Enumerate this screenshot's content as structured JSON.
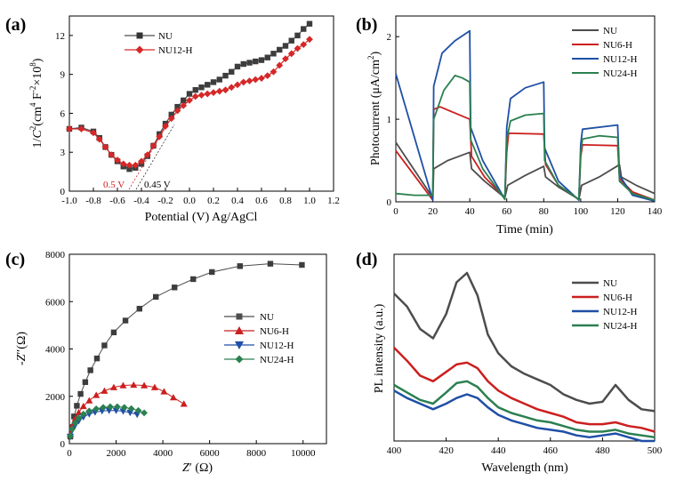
{
  "colors": {
    "NU": "#4d4d4d",
    "NU6": "#cc1f1f",
    "NU12": "#1f4fa6",
    "NU24": "#2b8050",
    "NU12H_a": "#d62728"
  },
  "chart_data": [
    {
      "panel": "(a)",
      "type": "scatter",
      "xlabel": "Potential (V) Ag/AgCl",
      "ylabel_parts": [
        "1/",
        "C",
        "2",
        "(cm",
        "4",
        " F",
        "-2",
        "×10",
        "8",
        ")"
      ],
      "xlim": [
        -1.0,
        1.2
      ],
      "ylim": [
        0,
        13.5
      ],
      "xticks": [
        "-1.0",
        "-0.8",
        "-0.6",
        "-0.4",
        "-0.2",
        "0.0",
        "0.2",
        "0.4",
        "0.6",
        "0.8",
        "1.0",
        "1.2"
      ],
      "yticks": [
        "0",
        "3",
        "6",
        "9",
        "12"
      ],
      "legend": [
        "NU",
        "NU12-H"
      ],
      "annotations": [
        "0.5 V",
        "0.45 V"
      ],
      "series": [
        {
          "name": "NU",
          "marker": "square",
          "color_key": "NU",
          "x": [
            -1.0,
            -0.9,
            -0.8,
            -0.75,
            -0.7,
            -0.65,
            -0.6,
            -0.55,
            -0.5,
            -0.45,
            -0.4,
            -0.35,
            -0.3,
            -0.25,
            -0.2,
            -0.15,
            -0.1,
            -0.05,
            0.0,
            0.05,
            0.1,
            0.15,
            0.2,
            0.25,
            0.3,
            0.35,
            0.4,
            0.45,
            0.5,
            0.55,
            0.6,
            0.65,
            0.7,
            0.75,
            0.8,
            0.85,
            0.9,
            0.95,
            1.0
          ],
          "y": [
            4.8,
            4.9,
            4.6,
            4.1,
            3.4,
            2.8,
            2.3,
            1.9,
            1.7,
            1.8,
            2.1,
            2.7,
            3.5,
            4.4,
            5.2,
            5.9,
            6.5,
            7.0,
            7.5,
            7.8,
            8.0,
            8.2,
            8.4,
            8.6,
            8.9,
            9.2,
            9.6,
            9.8,
            9.9,
            10.0,
            10.1,
            10.3,
            10.6,
            10.9,
            11.2,
            11.6,
            12.0,
            12.5,
            12.9
          ]
        },
        {
          "name": "NU12-H",
          "marker": "diamond",
          "color_key": "NU12H_a",
          "x": [
            -1.0,
            -0.9,
            -0.8,
            -0.75,
            -0.7,
            -0.65,
            -0.6,
            -0.55,
            -0.5,
            -0.45,
            -0.4,
            -0.35,
            -0.3,
            -0.25,
            -0.2,
            -0.15,
            -0.1,
            -0.05,
            0.0,
            0.05,
            0.1,
            0.15,
            0.2,
            0.25,
            0.3,
            0.35,
            0.4,
            0.45,
            0.5,
            0.55,
            0.6,
            0.65,
            0.7,
            0.75,
            0.8,
            0.85,
            0.9,
            0.95,
            1.0
          ],
          "y": [
            4.8,
            4.8,
            4.5,
            4.0,
            3.4,
            2.8,
            2.4,
            2.1,
            2.0,
            2.0,
            2.3,
            2.8,
            3.5,
            4.2,
            5.0,
            5.6,
            6.2,
            6.6,
            7.0,
            7.3,
            7.4,
            7.5,
            7.6,
            7.7,
            7.8,
            8.0,
            8.2,
            8.4,
            8.5,
            8.6,
            8.7,
            8.9,
            9.2,
            9.7,
            10.2,
            10.6,
            11.0,
            11.3,
            11.7
          ]
        }
      ]
    },
    {
      "panel": "(b)",
      "type": "line",
      "xlabel": "Time (min)",
      "ylabel": "Photocurrent (μA/cm²)",
      "ylabel_parts": [
        "Photocurrent (μA/cm",
        "2",
        ")"
      ],
      "xlim": [
        0,
        140
      ],
      "ylim": [
        0,
        2.25
      ],
      "xticks": [
        "0",
        "20",
        "40",
        "60",
        "80",
        "100",
        "120",
        "140"
      ],
      "yticks": [
        "0",
        "1",
        "2"
      ],
      "legend": [
        "NU",
        "NU6-H",
        "NU12-H",
        "NU24-H"
      ],
      "series": [
        {
          "name": "NU",
          "color_key": "NU",
          "x": [
            0,
            20,
            20.5,
            28,
            40,
            41,
            48,
            59,
            60.5,
            70,
            80,
            81,
            88,
            99,
            100.5,
            110,
            121,
            122,
            130,
            140
          ],
          "y": [
            0.72,
            0.05,
            0.4,
            0.5,
            0.6,
            0.4,
            0.25,
            0.05,
            0.2,
            0.32,
            0.43,
            0.3,
            0.18,
            0.03,
            0.2,
            0.3,
            0.45,
            0.3,
            0.2,
            0.1
          ]
        },
        {
          "name": "NU6-H",
          "color_key": "NU6",
          "x": [
            0,
            20,
            20.5,
            24,
            40,
            41,
            48,
            59,
            60,
            61,
            80,
            81,
            88,
            99,
            100,
            101,
            120,
            121,
            128,
            140
          ],
          "y": [
            0.62,
            0.02,
            1.12,
            1.15,
            1.0,
            0.55,
            0.3,
            0.05,
            0.6,
            0.83,
            0.82,
            0.45,
            0.2,
            0.03,
            0.55,
            0.69,
            0.68,
            0.28,
            0.12,
            0.02
          ]
        },
        {
          "name": "NU12-H",
          "color_key": "NU12",
          "x": [
            0,
            20,
            20.5,
            25,
            32,
            40,
            40.5,
            47,
            59,
            60,
            62,
            70,
            80,
            80.5,
            88,
            99,
            100,
            101,
            120,
            121,
            128,
            140
          ],
          "y": [
            1.55,
            0.02,
            1.4,
            1.8,
            1.95,
            2.07,
            0.9,
            0.5,
            0.03,
            0.9,
            1.25,
            1.38,
            1.45,
            0.65,
            0.25,
            0.02,
            0.7,
            0.88,
            0.93,
            0.32,
            0.08,
            0.01
          ]
        },
        {
          "name": "NU24-H",
          "color_key": "NU24",
          "x": [
            0,
            10,
            20,
            20.5,
            26,
            32,
            36,
            40,
            40.5,
            47,
            59,
            60,
            62,
            70,
            80,
            80.5,
            88,
            99,
            100,
            101,
            110,
            120,
            121,
            128,
            140
          ],
          "y": [
            0.1,
            0.08,
            0.08,
            1.0,
            1.35,
            1.53,
            1.5,
            1.45,
            0.75,
            0.4,
            0.03,
            0.75,
            0.98,
            1.05,
            1.07,
            0.5,
            0.2,
            0.03,
            0.6,
            0.76,
            0.8,
            0.78,
            0.25,
            0.1,
            0.02
          ]
        }
      ]
    },
    {
      "panel": "(c)",
      "type": "scatter",
      "xlabel_parts": [
        "Z",
        "′ (Ω)"
      ],
      "ylabel_parts": [
        "-Z",
        "″",
        "(Ω)"
      ],
      "xlim": [
        0,
        11000
      ],
      "ylim": [
        0,
        8000
      ],
      "xticks": [
        "0",
        "2000",
        "4000",
        "6000",
        "8000",
        "10000"
      ],
      "yticks": [
        "0",
        "2000",
        "4000",
        "6000",
        "8000"
      ],
      "legend": [
        "NU",
        "NU6-H",
        "NU12-H",
        "NU24-H"
      ],
      "series": [
        {
          "name": "NU",
          "marker": "square",
          "color_key": "NU",
          "x": [
            40,
            100,
            200,
            320,
            480,
            680,
            900,
            1180,
            1500,
            1900,
            2400,
            3000,
            3700,
            4500,
            5300,
            6100,
            7300,
            8600,
            9950
          ],
          "y": [
            300,
            700,
            1150,
            1600,
            2100,
            2600,
            3100,
            3600,
            4150,
            4700,
            5200,
            5700,
            6200,
            6600,
            6950,
            7250,
            7500,
            7600,
            7550
          ]
        },
        {
          "name": "NU6-H",
          "marker": "triangle-up",
          "color_key": "NU6",
          "x": [
            40,
            120,
            250,
            400,
            600,
            850,
            1150,
            1500,
            1900,
            2300,
            2750,
            3200,
            3650,
            4050,
            4450,
            4900
          ],
          "y": [
            400,
            750,
            1050,
            1320,
            1580,
            1820,
            2050,
            2230,
            2380,
            2460,
            2480,
            2460,
            2380,
            2200,
            1950,
            1680
          ]
        },
        {
          "name": "NU12-H",
          "marker": "triangle-down",
          "color_key": "NU12",
          "x": [
            40,
            120,
            250,
            400,
            600,
            850,
            1100,
            1400,
            1700,
            2000,
            2300,
            2600,
            2900
          ],
          "y": [
            300,
            560,
            780,
            960,
            1120,
            1250,
            1330,
            1380,
            1400,
            1400,
            1370,
            1310,
            1230
          ]
        },
        {
          "name": "NU24-H",
          "marker": "diamond",
          "color_key": "NU24",
          "x": [
            40,
            120,
            250,
            400,
            600,
            850,
            1150,
            1450,
            1750,
            2050,
            2350,
            2650,
            2950,
            3200
          ],
          "y": [
            320,
            620,
            880,
            1080,
            1250,
            1380,
            1470,
            1530,
            1560,
            1560,
            1530,
            1480,
            1400,
            1300
          ]
        }
      ]
    },
    {
      "panel": "(d)",
      "type": "line",
      "xlabel": "Wavelength (nm)",
      "ylabel": "PL intensity (a.u.)",
      "xlim": [
        400,
        500
      ],
      "ylim": [
        0,
        1
      ],
      "xticks": [
        "400",
        "420",
        "440",
        "460",
        "480",
        "500"
      ],
      "legend": [
        "NU",
        "NU6-H",
        "NU12-H",
        "NU24-H"
      ],
      "series": [
        {
          "name": "NU",
          "color_key": "NU",
          "x": [
            400,
            405,
            410,
            415,
            420,
            424,
            428,
            432,
            436,
            440,
            445,
            450,
            455,
            460,
            465,
            470,
            475,
            480,
            485,
            490,
            495,
            500
          ],
          "y": [
            0.79,
            0.72,
            0.6,
            0.55,
            0.68,
            0.85,
            0.9,
            0.78,
            0.57,
            0.47,
            0.4,
            0.36,
            0.33,
            0.3,
            0.25,
            0.22,
            0.2,
            0.21,
            0.3,
            0.22,
            0.17,
            0.16
          ]
        },
        {
          "name": "NU6-H",
          "color_key": "NU6",
          "x": [
            400,
            405,
            410,
            415,
            420,
            424,
            428,
            432,
            436,
            440,
            445,
            450,
            455,
            460,
            465,
            470,
            475,
            480,
            485,
            490,
            495,
            500
          ],
          "y": [
            0.5,
            0.43,
            0.35,
            0.32,
            0.37,
            0.41,
            0.42,
            0.39,
            0.32,
            0.27,
            0.23,
            0.2,
            0.17,
            0.15,
            0.13,
            0.1,
            0.09,
            0.09,
            0.1,
            0.08,
            0.07,
            0.05
          ]
        },
        {
          "name": "NU12-H",
          "color_key": "NU12",
          "x": [
            400,
            405,
            410,
            415,
            420,
            424,
            428,
            432,
            436,
            440,
            445,
            450,
            455,
            460,
            465,
            470,
            475,
            480,
            485,
            490,
            495,
            500
          ],
          "y": [
            0.27,
            0.23,
            0.2,
            0.17,
            0.2,
            0.23,
            0.25,
            0.23,
            0.18,
            0.14,
            0.11,
            0.09,
            0.07,
            0.06,
            0.05,
            0.03,
            0.02,
            0.03,
            0.04,
            0.02,
            0.0,
            0.0
          ]
        },
        {
          "name": "NU24-H",
          "color_key": "NU24",
          "x": [
            400,
            405,
            410,
            415,
            420,
            424,
            428,
            432,
            436,
            440,
            445,
            450,
            455,
            460,
            465,
            470,
            475,
            480,
            485,
            490,
            495,
            500
          ],
          "y": [
            0.3,
            0.26,
            0.22,
            0.2,
            0.26,
            0.31,
            0.32,
            0.29,
            0.23,
            0.18,
            0.15,
            0.13,
            0.11,
            0.1,
            0.08,
            0.06,
            0.05,
            0.05,
            0.06,
            0.04,
            0.03,
            0.02
          ]
        }
      ]
    }
  ]
}
